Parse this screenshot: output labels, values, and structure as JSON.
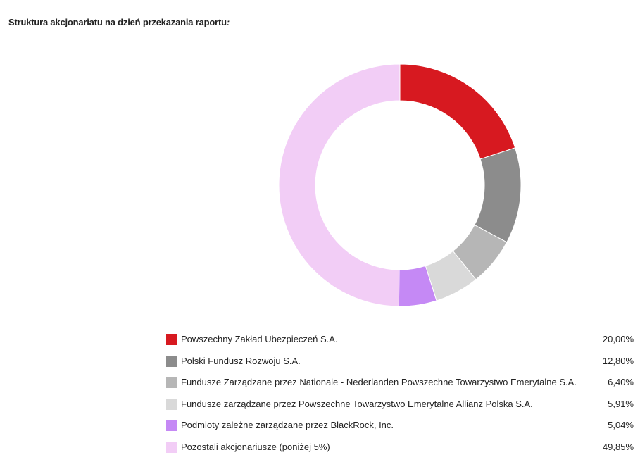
{
  "title": "Struktura akcjonariatu na dzień przekazania raportu",
  "title_suffix": ":",
  "chart_data": {
    "type": "pie",
    "donut": true,
    "categories": [
      "Powszechny Zakład Ubezpieczeń S.A.",
      "Polski Fundusz Rozwoju S.A.",
      "Fundusze Zarządzane przez Nationale - Nederlanden Powszechne Towarzystwo Emerytalne S.A.",
      "Fundusze zarządzane przez Powszechne Towarzystwo Emerytalne Allianz Polska S.A.",
      "Podmioty zależne zarządzane przez BlackRock, Inc.",
      "Pozostali akcjonariusze (poniżej 5%)"
    ],
    "values": [
      20.0,
      12.8,
      6.4,
      5.91,
      5.04,
      49.85
    ],
    "value_labels": [
      "20,00%",
      "12,80%",
      "6,40%",
      "5,91%",
      "5,04%",
      "49,85%"
    ],
    "colors": [
      "#d71920",
      "#8c8c8c",
      "#b6b6b6",
      "#d9d9d9",
      "#c589f5",
      "#f2cdf6"
    ],
    "legend_position": "bottom"
  }
}
